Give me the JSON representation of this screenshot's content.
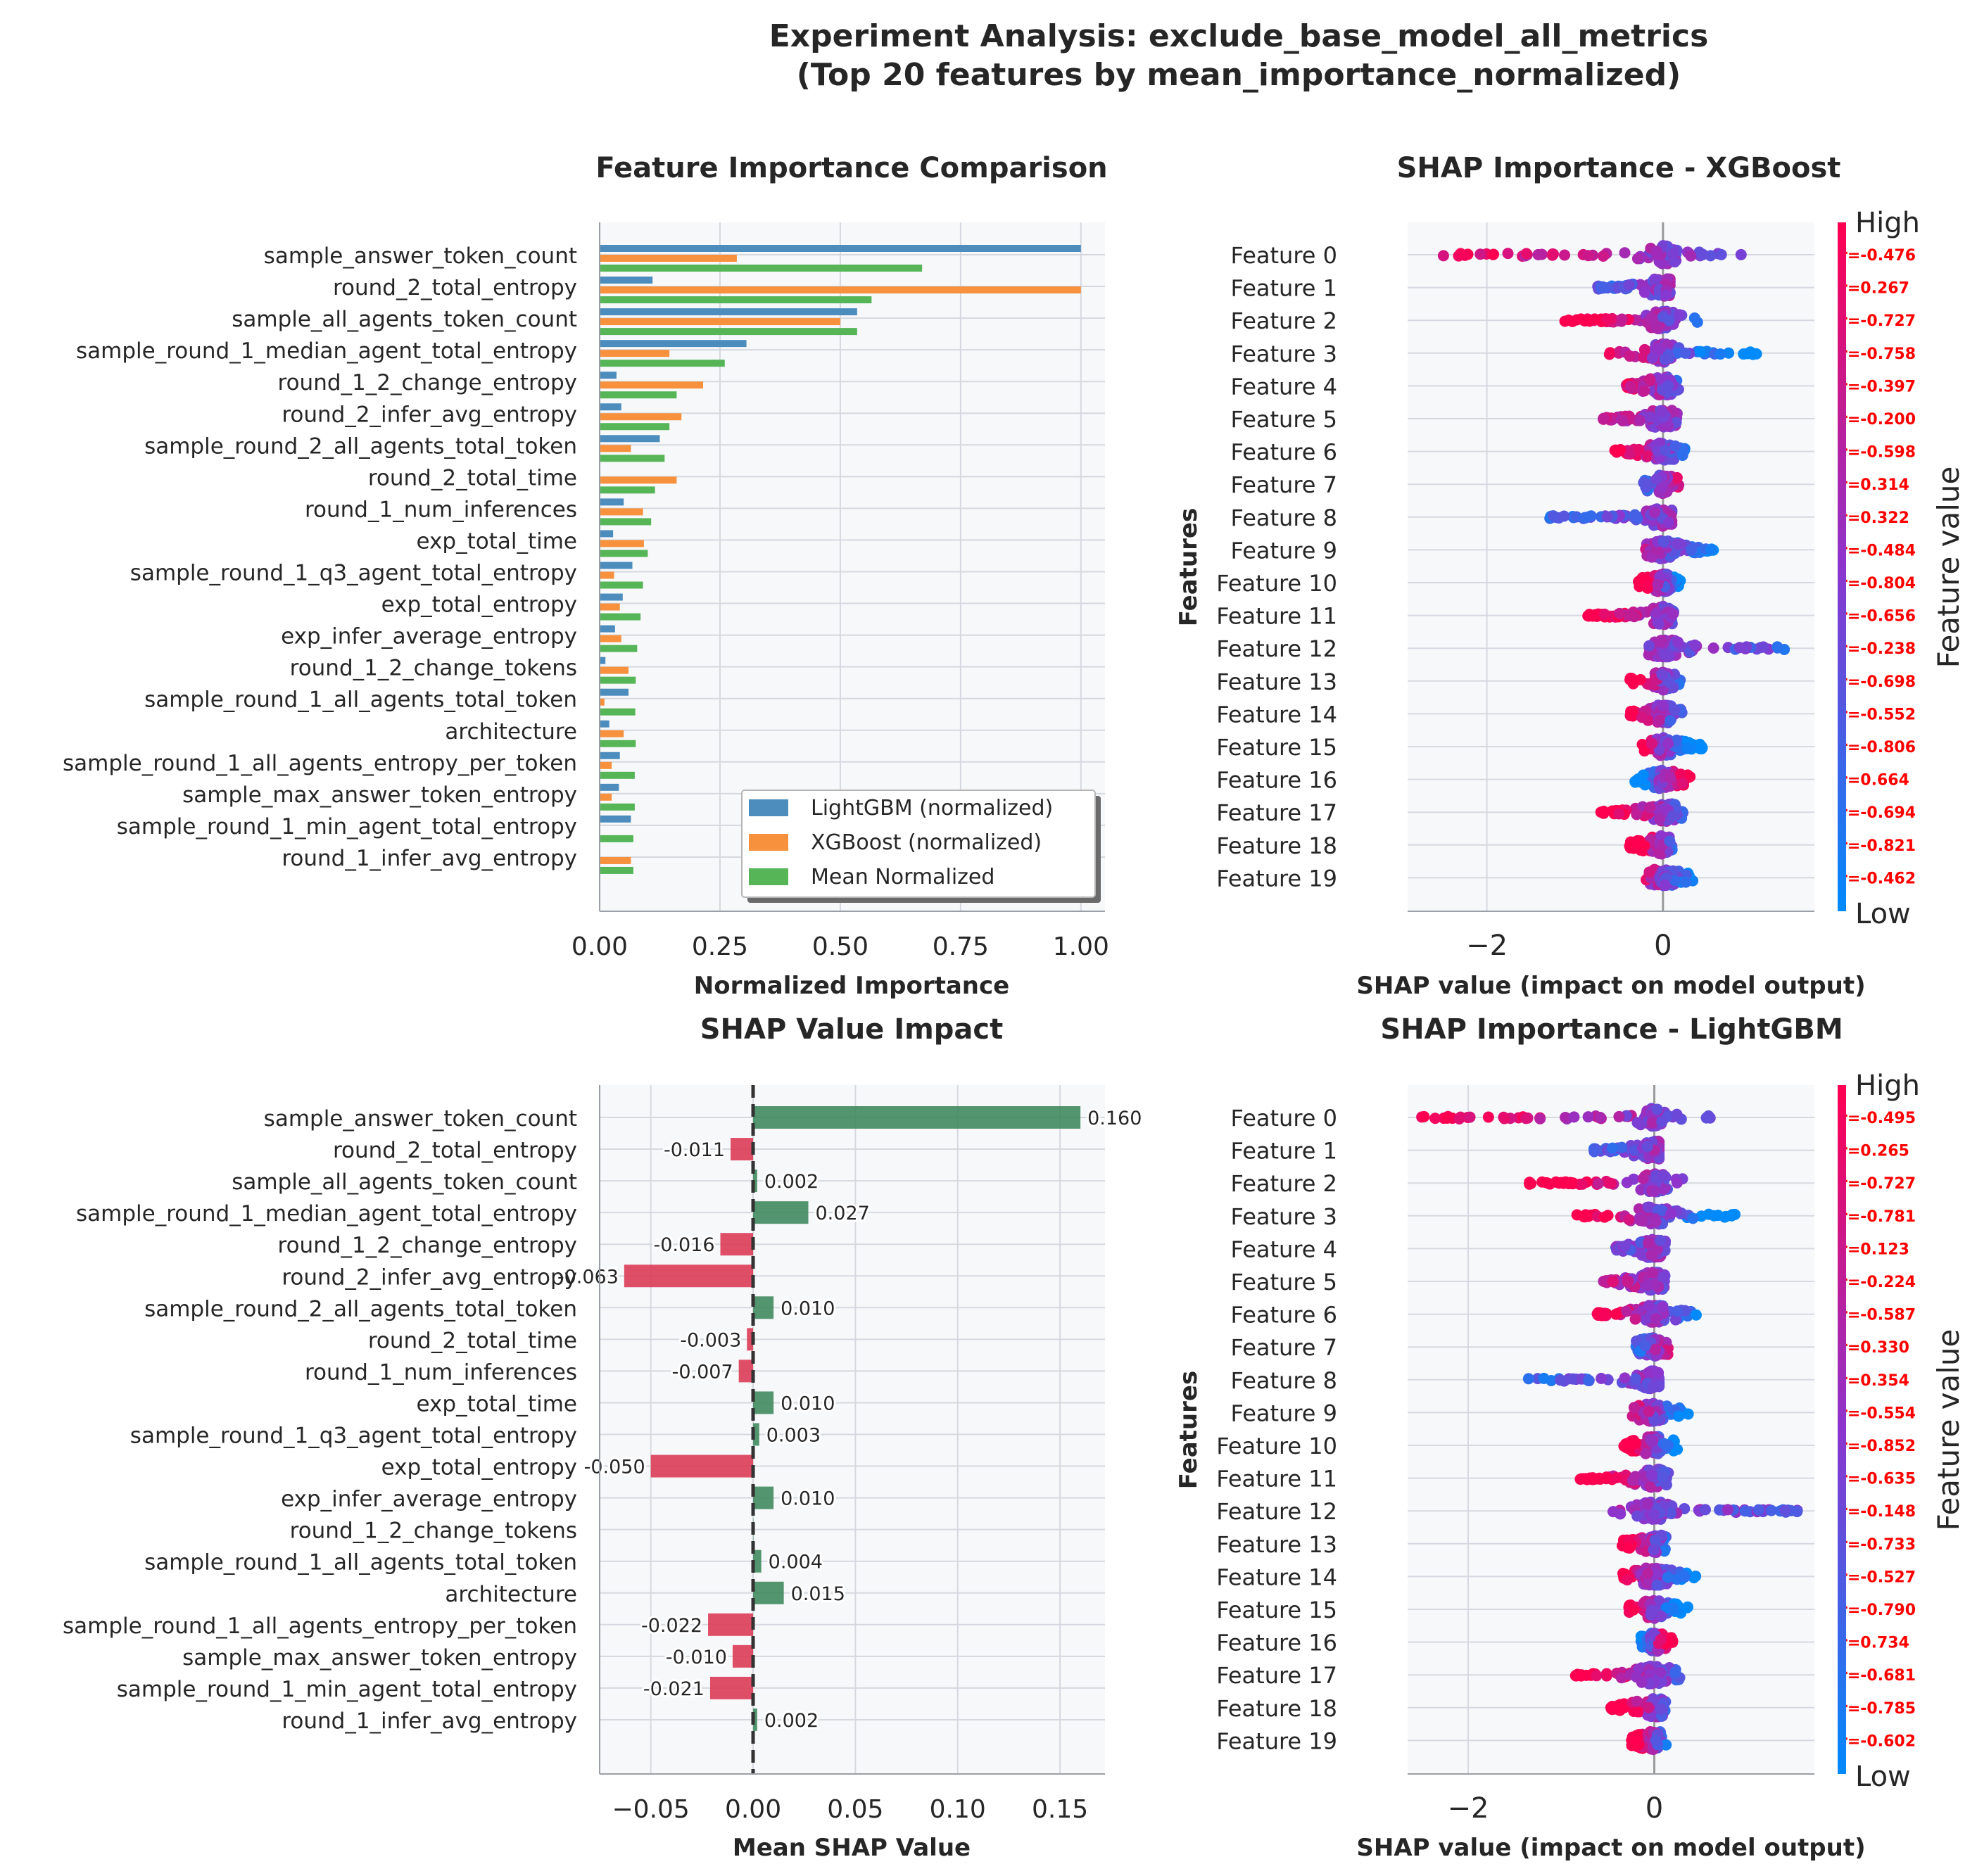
{
  "suptitle": {
    "line1": "Experiment Analysis: exclude_base_model_all_metrics",
    "line2": "(Top 20 features by mean_importance_normalized)"
  },
  "colors": {
    "lightgbm": "#4c8dbd",
    "xgboost": "#f7913d",
    "mean": "#55b557",
    "positive": "#3f8a5e",
    "negative": "#dc3b56",
    "panel_bg": "#f7f8fa",
    "grid": "#d5d9df",
    "cmap_low": "#008afb",
    "cmap_mid": "#8c35ce",
    "cmap_high": "#ff0051",
    "r_text": "#ff0000"
  },
  "features": [
    "sample_answer_token_count",
    "round_2_total_entropy",
    "sample_all_agents_token_count",
    "sample_round_1_median_agent_total_entropy",
    "round_1_2_change_entropy",
    "round_2_infer_avg_entropy",
    "sample_round_2_all_agents_total_token",
    "round_2_total_time",
    "round_1_num_inferences",
    "exp_total_time",
    "sample_round_1_q3_agent_total_entropy",
    "exp_total_entropy",
    "exp_infer_average_entropy",
    "round_1_2_change_tokens",
    "sample_round_1_all_agents_total_token",
    "architecture",
    "sample_round_1_all_agents_entropy_per_token",
    "sample_max_answer_token_entropy",
    "sample_round_1_min_agent_total_entropy",
    "round_1_infer_avg_entropy"
  ],
  "panels": {
    "importance": {
      "title": "Feature Importance Comparison",
      "xlabel": "Normalized Importance",
      "legend": [
        "LightGBM (normalized)",
        "XGBoost (normalized)",
        "Mean Normalized"
      ]
    },
    "shap_impact": {
      "title": "SHAP Value Impact",
      "xlabel": "Mean SHAP Value"
    },
    "shap_xgb": {
      "title": "SHAP Importance - XGBoost",
      "xlabel": "SHAP value (impact on model output)",
      "ylabel": "Features",
      "cbar_label": "Feature value",
      "cbar_high": "High",
      "cbar_low": "Low"
    },
    "shap_lgbm": {
      "title": "SHAP Importance - LightGBM",
      "xlabel": "SHAP value (impact on model output)",
      "ylabel": "Features",
      "cbar_label": "Feature value",
      "cbar_high": "High",
      "cbar_low": "Low"
    }
  },
  "chart_data": [
    {
      "type": "bar",
      "orientation": "horizontal",
      "title": "Feature Importance Comparison",
      "xlabel": "Normalized Importance",
      "xlim": [
        0,
        1.05
      ],
      "xticks": [
        0.0,
        0.25,
        0.5,
        0.75,
        1.0
      ],
      "xtick_labels": [
        "0.00",
        "0.25",
        "0.50",
        "0.75",
        "1.00"
      ],
      "legend_position": "lower-right",
      "series": [
        {
          "name": "LightGBM (normalized)",
          "values": [
            1.0,
            0.11,
            0.535,
            0.305,
            0.035,
            0.045,
            0.125,
            0.0,
            0.05,
            0.028,
            0.068,
            0.048,
            0.032,
            0.012,
            0.06,
            0.02,
            0.042,
            0.04,
            0.065,
            0.0
          ]
        },
        {
          "name": "XGBoost (normalized)",
          "values": [
            0.285,
            1.0,
            0.5,
            0.145,
            0.215,
            0.17,
            0.065,
            0.16,
            0.09,
            0.092,
            0.03,
            0.042,
            0.045,
            0.06,
            0.01,
            0.05,
            0.025,
            0.025,
            0.0,
            0.065
          ]
        },
        {
          "name": "Mean Normalized",
          "values": [
            0.67,
            0.565,
            0.535,
            0.26,
            0.16,
            0.145,
            0.135,
            0.115,
            0.107,
            0.1,
            0.09,
            0.085,
            0.078,
            0.075,
            0.074,
            0.075,
            0.073,
            0.073,
            0.07,
            0.07
          ]
        }
      ]
    },
    {
      "type": "bar",
      "orientation": "horizontal",
      "title": "SHAP Value Impact",
      "xlabel": "Mean SHAP Value",
      "xlim": [
        -0.075,
        0.172
      ],
      "xticks": [
        -0.05,
        0.0,
        0.05,
        0.1,
        0.15
      ],
      "xtick_labels": [
        "−0.05",
        "0.00",
        "0.05",
        "0.10",
        "0.15"
      ],
      "reference_line": 0,
      "values": [
        0.16,
        -0.011,
        0.002,
        0.027,
        -0.016,
        -0.063,
        0.01,
        -0.003,
        -0.007,
        0.01,
        0.003,
        -0.05,
        0.01,
        0.0,
        0.004,
        0.015,
        -0.022,
        -0.01,
        -0.021,
        0.002
      ],
      "data_labels": [
        "0.160",
        "-0.011",
        "0.002",
        "0.027",
        "-0.016",
        "-0.063",
        "0.010",
        "-0.003",
        "-0.007",
        "0.010",
        "0.003",
        "-0.050",
        "0.010",
        "",
        "0.004",
        "0.015",
        "-0.022",
        "-0.010",
        "-0.021",
        "0.002"
      ]
    },
    {
      "type": "scatter",
      "subtype": "shap-beeswarm",
      "title": "SHAP Importance - XGBoost",
      "xlabel": "SHAP value (impact on model output)",
      "ylabel": "Features",
      "xlim": [
        -2.9,
        1.72
      ],
      "xticks": [
        -2,
        0
      ],
      "xtick_labels": [
        "−2",
        "0"
      ],
      "categories": [
        "Feature 0",
        "Feature 1",
        "Feature 2",
        "Feature 3",
        "Feature 4",
        "Feature 5",
        "Feature 6",
        "Feature 7",
        "Feature 8",
        "Feature 9",
        "Feature 10",
        "Feature 11",
        "Feature 12",
        "Feature 13",
        "Feature 14",
        "Feature 15",
        "Feature 16",
        "Feature 17",
        "Feature 18",
        "Feature 19"
      ],
      "ranges": [
        [
          -2.7,
          0.92
        ],
        [
          -0.75,
          0.08
        ],
        [
          -1.15,
          0.42
        ],
        [
          -0.68,
          1.08
        ],
        [
          -0.42,
          0.18
        ],
        [
          -0.68,
          0.18
        ],
        [
          -0.55,
          0.25
        ],
        [
          -0.22,
          0.18
        ],
        [
          -1.32,
          0.1
        ],
        [
          -0.2,
          0.58
        ],
        [
          -0.28,
          0.2
        ],
        [
          -0.9,
          0.12
        ],
        [
          -0.2,
          1.52
        ],
        [
          -0.38,
          0.2
        ],
        [
          -0.38,
          0.22
        ],
        [
          -0.25,
          0.45
        ],
        [
          -0.32,
          0.32
        ],
        [
          -0.72,
          0.28
        ],
        [
          -0.38,
          0.12
        ],
        [
          -0.2,
          0.35
        ]
      ],
      "correlations": [
        -0.476,
        0.267,
        -0.727,
        -0.758,
        -0.397,
        -0.2,
        -0.598,
        0.314,
        0.322,
        -0.484,
        -0.804,
        -0.656,
        -0.238,
        -0.698,
        -0.552,
        -0.806,
        0.664,
        -0.694,
        -0.821,
        -0.462
      ],
      "r_labels": [
        "r=-0.476",
        "r=0.267",
        "r=-0.727",
        "r=-0.758",
        "r=-0.397",
        "r=-0.200",
        "r=-0.598",
        "r=0.314",
        "r=0.322",
        "r=-0.484",
        "r=-0.804",
        "r=-0.656",
        "r=-0.238",
        "r=-0.698",
        "r=-0.552",
        "r=-0.806",
        "r=0.664",
        "r=-0.694",
        "r=-0.821",
        "r=-0.462"
      ],
      "colorbar": {
        "label": "Feature value",
        "high": "High",
        "low": "Low"
      }
    },
    {
      "type": "scatter",
      "subtype": "shap-beeswarm",
      "title": "SHAP Importance - LightGBM",
      "xlabel": "SHAP value (impact on model output)",
      "ylabel": "Features",
      "xlim": [
        -2.65,
        1.72
      ],
      "xticks": [
        -2,
        0
      ],
      "xtick_labels": [
        "−2",
        "0"
      ],
      "categories": [
        "Feature 0",
        "Feature 1",
        "Feature 2",
        "Feature 3",
        "Feature 4",
        "Feature 5",
        "Feature 6",
        "Feature 7",
        "Feature 8",
        "Feature 9",
        "Feature 10",
        "Feature 11",
        "Feature 12",
        "Feature 13",
        "Feature 14",
        "Feature 15",
        "Feature 16",
        "Feature 17",
        "Feature 18",
        "Feature 19"
      ],
      "ranges": [
        [
          -2.5,
          0.72
        ],
        [
          -0.65,
          0.05
        ],
        [
          -1.35,
          0.32
        ],
        [
          -0.85,
          0.95
        ],
        [
          -0.42,
          0.12
        ],
        [
          -0.55,
          0.12
        ],
        [
          -0.62,
          0.45
        ],
        [
          -0.2,
          0.15
        ],
        [
          -1.45,
          0.05
        ],
        [
          -0.25,
          0.38
        ],
        [
          -0.35,
          0.25
        ],
        [
          -0.8,
          0.15
        ],
        [
          -0.45,
          1.6
        ],
        [
          -0.35,
          0.15
        ],
        [
          -0.35,
          0.45
        ],
        [
          -0.28,
          0.38
        ],
        [
          -0.15,
          0.2
        ],
        [
          -0.85,
          0.28
        ],
        [
          -0.48,
          0.12
        ],
        [
          -0.25,
          0.15
        ]
      ],
      "correlations": [
        -0.495,
        0.265,
        -0.727,
        -0.781,
        0.123,
        -0.224,
        -0.587,
        0.33,
        0.354,
        -0.554,
        -0.852,
        -0.635,
        -0.148,
        -0.733,
        -0.527,
        -0.79,
        0.734,
        -0.681,
        -0.785,
        -0.602
      ],
      "r_labels": [
        "r=-0.495",
        "r=0.265",
        "r=-0.727",
        "r=-0.781",
        "r=0.123",
        "r=-0.224",
        "r=-0.587",
        "r=0.330",
        "r=0.354",
        "r=-0.554",
        "r=-0.852",
        "r=-0.635",
        "r=-0.148",
        "r=-0.733",
        "r=-0.527",
        "r=-0.790",
        "r=0.734",
        "r=-0.681",
        "r=-0.785",
        "r=-0.602"
      ],
      "colorbar": {
        "label": "Feature value",
        "high": "High",
        "low": "Low"
      }
    }
  ]
}
